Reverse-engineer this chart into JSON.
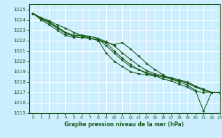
{
  "background_color": "#cceeff",
  "grid_color": "#ffffff",
  "line_color": "#1a5c1a",
  "marker_color": "#1a5c1a",
  "xlabel": "Graphe pression niveau de la mer (hPa)",
  "xlim": [
    -0.5,
    23
  ],
  "ylim": [
    1015,
    1025.5
  ],
  "yticks": [
    1015,
    1016,
    1017,
    1018,
    1019,
    1020,
    1021,
    1022,
    1023,
    1024,
    1025
  ],
  "xticks": [
    0,
    1,
    2,
    3,
    4,
    5,
    6,
    7,
    8,
    9,
    10,
    11,
    12,
    13,
    14,
    15,
    16,
    17,
    18,
    19,
    20,
    21,
    22,
    23
  ],
  "series": [
    [
      1024.6,
      1024.2,
      1023.9,
      1023.5,
      1023.2,
      1022.8,
      1022.5,
      1022.2,
      1022.0,
      1021.8,
      1021.6,
      1021.8,
      1021.2,
      1020.5,
      1019.8,
      1019.2,
      1018.7,
      1018.3,
      1018.0,
      1017.7,
      1017.2,
      1015.2,
      1017.0,
      1017.0
    ],
    [
      1024.6,
      1024.2,
      1023.8,
      1023.3,
      1022.8,
      1022.5,
      1022.5,
      1022.4,
      1022.2,
      1021.5,
      1020.8,
      1020.1,
      1019.5,
      1019.2,
      1018.8,
      1018.6,
      1018.3,
      1018.1,
      1017.8,
      1017.5,
      1017.1,
      1017.0,
      1017.0,
      1017.0
    ],
    [
      1024.6,
      1024.1,
      1023.7,
      1023.2,
      1022.7,
      1022.4,
      1022.3,
      1022.2,
      1022.1,
      1021.8,
      1021.0,
      1020.3,
      1019.7,
      1019.2,
      1018.9,
      1018.7,
      1018.5,
      1018.3,
      1018.1,
      1017.9,
      1017.5,
      1017.2,
      1017.0,
      1017.0
    ],
    [
      1024.6,
      1024.1,
      1023.7,
      1023.2,
      1022.7,
      1022.5,
      1022.5,
      1022.2,
      1022.1,
      1020.8,
      1020.0,
      1019.5,
      1019.0,
      1018.8,
      1018.7,
      1018.6,
      1018.5,
      1018.4,
      1018.2,
      1018.0,
      1017.6,
      1017.3,
      1017.0,
      1017.0
    ],
    [
      1024.6,
      1024.0,
      1023.5,
      1023.0,
      1022.5,
      1022.3,
      1022.3,
      1022.4,
      1022.2,
      1021.9,
      1021.5,
      1020.8,
      1020.2,
      1019.6,
      1019.1,
      1018.8,
      1018.6,
      1018.4,
      1018.2,
      1018.0,
      1017.6,
      1017.3,
      1017.0,
      1017.0
    ]
  ]
}
